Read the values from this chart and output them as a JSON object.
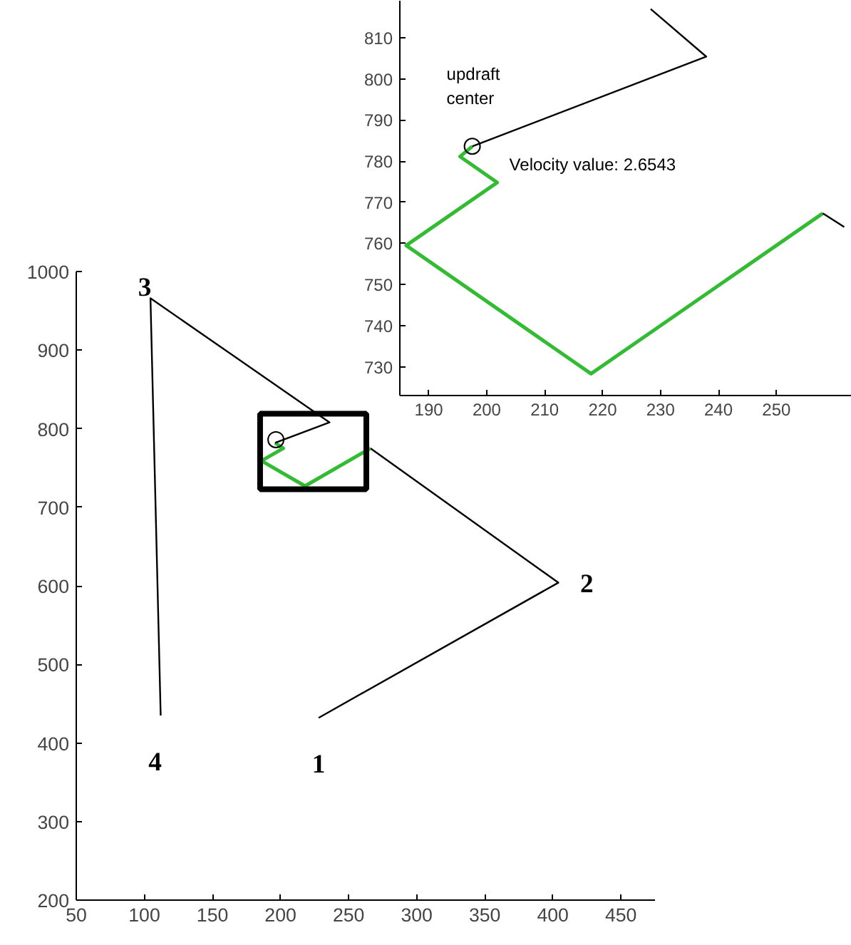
{
  "chart_data": [
    {
      "type": "line",
      "xlim": [
        50,
        475
      ],
      "ylim": [
        200,
        1000
      ],
      "xticks": [
        50,
        100,
        150,
        200,
        250,
        300,
        350,
        400,
        450
      ],
      "yticks": [
        200,
        300,
        400,
        500,
        600,
        700,
        800,
        900,
        1000
      ],
      "grid": false,
      "series": [
        {
          "color": "#000000",
          "x": [
            228,
            404,
            266
          ],
          "values": [
            432,
            604,
            775
          ]
        },
        {
          "color": "#33bb33",
          "x": [
            266,
            218,
            186,
            202,
            196
          ],
          "values": [
            775,
            727,
            759,
            775,
            782
          ]
        },
        {
          "color": "#000000",
          "x": [
            196,
            236,
            104.5,
            112
          ],
          "values": [
            782,
            808,
            966,
            435
          ]
        },
        {
          "type": "scatter",
          "marker": "circle",
          "color": "#000000",
          "x": [
            196.6
          ],
          "values": [
            786
          ]
        }
      ],
      "annotations": [
        {
          "text": "1",
          "x": 228,
          "y": 432
        },
        {
          "text": "2",
          "x": 404,
          "y": 604
        },
        {
          "text": "3",
          "x": 104.5,
          "y": 966
        },
        {
          "text": "4",
          "x": 112,
          "y": 435
        }
      ]
    },
    {
      "type": "line",
      "xlim": [
        185,
        263
      ],
      "ylim": [
        723,
        819
      ],
      "xticks": [
        190,
        200,
        210,
        220,
        230,
        240,
        250
      ],
      "yticks": [
        730,
        740,
        750,
        760,
        770,
        780,
        790,
        800,
        810
      ],
      "grid": false,
      "series": [
        {
          "color": "#33bb33",
          "x": [
            258,
            218,
            186.1,
            201.8,
            195.4,
            197.5
          ],
          "values": [
            767.3,
            728.3,
            759.5,
            774.8,
            781.1,
            783.6
          ]
        },
        {
          "color": "#000000",
          "x": [
            197.5,
            237.9,
            228.3
          ],
          "values": [
            783.6,
            805.4,
            817
          ]
        },
        {
          "color": "#000000",
          "x": [
            258,
            261.7
          ],
          "values": [
            767.3,
            764
          ]
        },
        {
          "type": "scatter",
          "marker": "circle",
          "color": "#000000",
          "x": [
            197.5
          ],
          "values": [
            783.6
          ]
        }
      ],
      "annotations": [
        {
          "text": "updraft\ncenter",
          "x": 197.5,
          "y": 783.6
        },
        {
          "text": "Velocity value: 2.6543",
          "x": 197.5,
          "y": 783.6
        }
      ]
    }
  ]
}
